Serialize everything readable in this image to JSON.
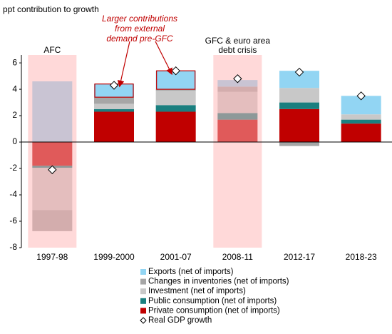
{
  "chart_data": {
    "type": "stacked_bar",
    "y_label": "ppt contribution to growth",
    "categories": [
      "1997-98",
      "1999-2000",
      "2001-07",
      "2008-11",
      "2012-17",
      "2018-23"
    ],
    "series": [
      {
        "name": "Exports (net of imports)",
        "color": "#92d5f3",
        "values": [
          4.6,
          1.0,
          1.4,
          0.5,
          1.3,
          1.4
        ]
      },
      {
        "name": "Changes in inventories (net of imports)",
        "color": "#a6a6a6",
        "values": [
          -1.6,
          0.5,
          0.1,
          0.4,
          -0.3,
          0
        ]
      },
      {
        "name": "Investment (net of imports)",
        "color": "#c8c8c8",
        "values": [
          -3.2,
          0.4,
          1.1,
          1.6,
          1.1,
          0.4
        ]
      },
      {
        "name": "Public consumption (net of imports)",
        "color": "#1a7f7f",
        "values": [
          -0.15,
          0.2,
          0.5,
          0.5,
          0.5,
          0.3
        ]
      },
      {
        "name": "Private consumption (net of imports)",
        "color": "#c00000",
        "values": [
          -1.8,
          2.3,
          2.3,
          1.7,
          2.5,
          1.4
        ]
      }
    ],
    "gdp": {
      "name": "Real GDP growth",
      "values": [
        -2.1,
        4.3,
        5.4,
        4.8,
        5.3,
        3.5
      ]
    },
    "ylim": [
      -8,
      6.6
    ],
    "yticks": [
      -8,
      -6,
      -4,
      -2,
      0,
      2,
      4,
      6
    ],
    "shaded": [
      {
        "category": "1997-98",
        "lines": [
          "AFC"
        ]
      },
      {
        "category": "2008-11",
        "lines": [
          "GFC & euro area",
          "debt crisis"
        ]
      }
    ],
    "callout": {
      "lines": [
        "Larger contributions",
        "from external",
        "demand pre-GFC"
      ],
      "categories": [
        "1999-2000",
        "2001-07"
      ],
      "color": "#c00000"
    }
  }
}
